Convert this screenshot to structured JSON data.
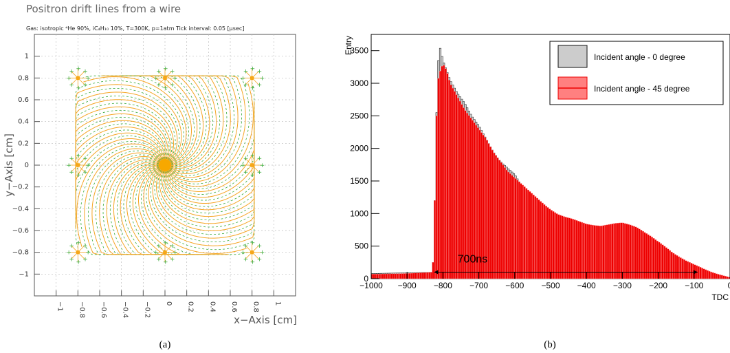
{
  "chart_data": [
    {
      "type": "scatter",
      "title": "Positron drift lines from a wire",
      "subtitle": "Gas: isotropic ⁴He 90%, iC₄H₁₀ 10%, T=300K, p=1atm   Tick interval: 0.05 [µsec]",
      "xlabel": "x−Axis [cm]",
      "ylabel": "y−Axis [cm]",
      "xlim": [
        -1.2,
        1.2
      ],
      "ylim": [
        -1.2,
        1.2
      ],
      "xticks": [
        "−1",
        "−0.8",
        "−0.6",
        "−0.4",
        "−0.2",
        "0",
        "0.2",
        "0.4",
        "0.6",
        "0.8",
        "1"
      ],
      "yticks": [
        "−1",
        "−0.8",
        "−0.6",
        "−0.4",
        "−0.2",
        "0",
        "0.2",
        "0.4",
        "0.6",
        "0.8",
        "1"
      ],
      "grid": true,
      "colors": {
        "drift_line": "#f5a524",
        "tick_marks": "#3aab3a",
        "wire": "#f7a800"
      },
      "wires": [
        {
          "x": 0,
          "y": 0
        },
        {
          "x": -0.8,
          "y": 0.8
        },
        {
          "x": 0,
          "y": 0.8
        },
        {
          "x": 0.8,
          "y": 0.8
        },
        {
          "x": -0.8,
          "y": 0
        },
        {
          "x": 0.8,
          "y": 0
        },
        {
          "x": -0.8,
          "y": -0.8
        },
        {
          "x": 0,
          "y": -0.8
        },
        {
          "x": 0.8,
          "y": -0.8
        }
      ],
      "caption": "(a)"
    },
    {
      "type": "bar",
      "xlabel": "TDC",
      "ylabel": "Entry",
      "xlim": [
        -1000,
        0
      ],
      "ylim": [
        0,
        3750
      ],
      "xticks": [
        "−1000",
        "−900",
        "−800",
        "−700",
        "−600",
        "−500",
        "−400",
        "−300",
        "−200",
        "−100",
        "0"
      ],
      "yticks": [
        "0",
        "500",
        "1000",
        "1500",
        "2000",
        "2500",
        "3000",
        "3500"
      ],
      "series": [
        {
          "name": "Incident angle - 0 degree",
          "color": "#111111",
          "x": [
            -1000,
            -900,
            -830,
            -825,
            -820,
            -815,
            -810,
            -800,
            -790,
            -780,
            -760,
            -740,
            -720,
            -700,
            -680,
            -660,
            -640,
            -620,
            -600,
            -580,
            -560,
            -540,
            -520,
            -500,
            -490,
            -480,
            -470,
            -460,
            -450,
            -440,
            -420,
            -400,
            -300,
            -200,
            -100,
            0
          ],
          "values": [
            80,
            90,
            100,
            400,
            2000,
            3100,
            3600,
            3350,
            3200,
            3050,
            2850,
            2700,
            2500,
            2350,
            2150,
            1950,
            1800,
            1700,
            1600,
            1420,
            1250,
            1100,
            980,
            870,
            750,
            550,
            330,
            170,
            70,
            30,
            10,
            5,
            0,
            0,
            0,
            0
          ]
        },
        {
          "name": "Incident angle - 45 degree",
          "color": "#ee0000",
          "x": [
            -1000,
            -900,
            -830,
            -825,
            -820,
            -815,
            -810,
            -800,
            -790,
            -780,
            -760,
            -740,
            -720,
            -700,
            -680,
            -660,
            -640,
            -620,
            -600,
            -580,
            -560,
            -540,
            -520,
            -500,
            -480,
            -460,
            -440,
            -420,
            -400,
            -380,
            -360,
            -340,
            -320,
            -300,
            -280,
            -260,
            -240,
            -220,
            -200,
            -180,
            -160,
            -140,
            -120,
            -100,
            -80,
            -60,
            -40,
            -20,
            0
          ],
          "values": [
            70,
            80,
            100,
            400,
            2000,
            3000,
            3150,
            3300,
            3200,
            3000,
            2800,
            2600,
            2450,
            2300,
            2150,
            1950,
            1800,
            1650,
            1550,
            1450,
            1350,
            1250,
            1150,
            1060,
            990,
            950,
            920,
            880,
            840,
            820,
            810,
            830,
            850,
            860,
            830,
            790,
            720,
            650,
            570,
            490,
            400,
            330,
            270,
            220,
            170,
            120,
            80,
            50,
            20
          ]
        }
      ],
      "legend": "top-right",
      "annotation": {
        "text": "700ns",
        "from": -825,
        "to": -90,
        "y": 100
      },
      "caption": "(b)"
    }
  ]
}
